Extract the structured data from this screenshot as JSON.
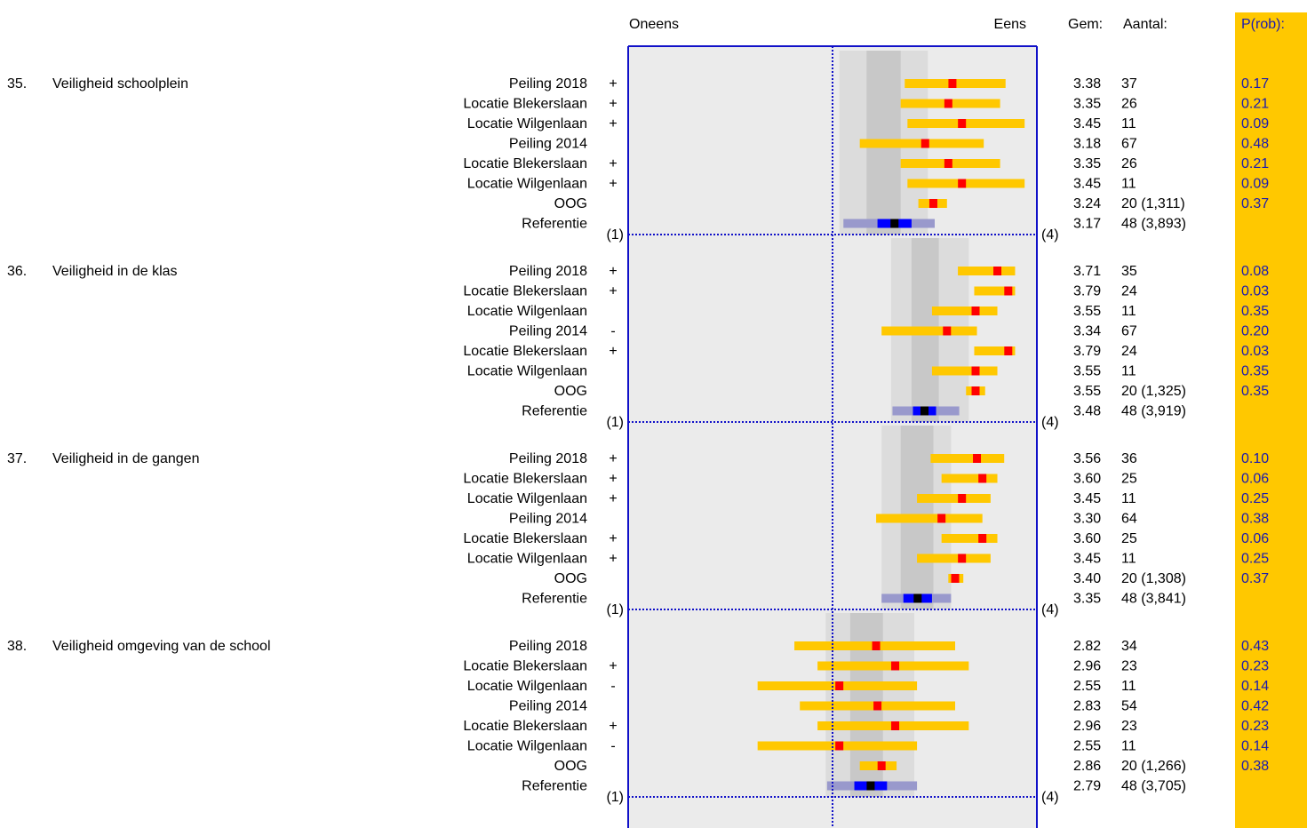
{
  "header": {
    "left_label": "Oneens",
    "right_label": "Eens",
    "mean_label": "Gem:",
    "count_label": "Aantal:",
    "prob_label": "P(rob):"
  },
  "axis": {
    "min": 1,
    "max": 4,
    "min_label": "(1)",
    "max_label": "(4)"
  },
  "colors": {
    "frame": "#1010c8",
    "plot_bg": "#ebebeb",
    "band_outer": "#dcdcdc",
    "band_inner": "#c8c8c8",
    "bar": "#ffc800",
    "mean_marker": "#ff0000",
    "ref_bar": "#9999cc",
    "ref_inner": "#0000ff",
    "ref_marker": "#000000",
    "prob_column": "#ffc800",
    "prob_text": "#1a1ab0"
  },
  "chart_data": {
    "type": "bar",
    "title": "",
    "xlim": [
      1,
      4
    ],
    "groups": [
      {
        "number": "35.",
        "title": "Veiligheid schoolplein",
        "band_outer": [
          2.55,
          3.2
        ],
        "band_inner": [
          2.75,
          3.0
        ],
        "rows": [
          {
            "label": "Peiling 2018",
            "sign": "+",
            "mean": 3.38,
            "low": 3.03,
            "high": 3.77,
            "mean_text": "3.38",
            "count_text": "37",
            "prob": "0.17"
          },
          {
            "label": "Locatie Blekerslaan",
            "sign": "+",
            "mean": 3.35,
            "low": 3.0,
            "high": 3.73,
            "mean_text": "3.35",
            "count_text": "26",
            "prob": "0.21"
          },
          {
            "label": "Locatie Wilgenlaan",
            "sign": "+",
            "mean": 3.45,
            "low": 3.05,
            "high": 3.91,
            "mean_text": "3.45",
            "count_text": "11",
            "prob": "0.09"
          },
          {
            "label": "Peiling 2014",
            "sign": "",
            "mean": 3.18,
            "low": 2.7,
            "high": 3.61,
            "mean_text": "3.18",
            "count_text": "67",
            "prob": "0.48"
          },
          {
            "label": "Locatie Blekerslaan",
            "sign": "+",
            "mean": 3.35,
            "low": 3.0,
            "high": 3.73,
            "mean_text": "3.35",
            "count_text": "26",
            "prob": "0.21"
          },
          {
            "label": "Locatie Wilgenlaan",
            "sign": "+",
            "mean": 3.45,
            "low": 3.05,
            "high": 3.91,
            "mean_text": "3.45",
            "count_text": "11",
            "prob": "0.09"
          },
          {
            "label": "OOG",
            "sign": "",
            "mean": 3.24,
            "low": 3.13,
            "high": 3.34,
            "mean_text": "3.24",
            "count_text": "20 (1,311)",
            "prob": "0.37"
          },
          {
            "label": "Referentie",
            "sign": "",
            "mean": 3.17,
            "low": 2.58,
            "high": 3.25,
            "inner_low": 2.83,
            "inner_high": 3.08,
            "mean_text": "3.17",
            "count_text": "48 (3,893)",
            "prob": "",
            "reference": true
          }
        ]
      },
      {
        "number": "36.",
        "title": "Veiligheid in de klas",
        "band_outer": [
          2.93,
          3.5
        ],
        "band_inner": [
          3.08,
          3.28
        ],
        "rows": [
          {
            "label": "Peiling 2018",
            "sign": "+",
            "mean": 3.71,
            "low": 3.42,
            "high": 3.84,
            "mean_text": "3.71",
            "count_text": "35",
            "prob": "0.08"
          },
          {
            "label": "Locatie Blekerslaan",
            "sign": "+",
            "mean": 3.79,
            "low": 3.54,
            "high": 3.84,
            "mean_text": "3.79",
            "count_text": "24",
            "prob": "0.03"
          },
          {
            "label": "Locatie Wilgenlaan",
            "sign": "",
            "mean": 3.55,
            "low": 3.23,
            "high": 3.71,
            "mean_text": "3.55",
            "count_text": "11",
            "prob": "0.35"
          },
          {
            "label": "Peiling 2014",
            "sign": "-",
            "mean": 3.34,
            "low": 2.86,
            "high": 3.56,
            "mean_text": "3.34",
            "count_text": "67",
            "prob": "0.20"
          },
          {
            "label": "Locatie Blekerslaan",
            "sign": "+",
            "mean": 3.79,
            "low": 3.54,
            "high": 3.84,
            "mean_text": "3.79",
            "count_text": "24",
            "prob": "0.03"
          },
          {
            "label": "Locatie Wilgenlaan",
            "sign": "",
            "mean": 3.55,
            "low": 3.23,
            "high": 3.71,
            "mean_text": "3.55",
            "count_text": "11",
            "prob": "0.35"
          },
          {
            "label": "OOG",
            "sign": "",
            "mean": 3.55,
            "low": 3.48,
            "high": 3.62,
            "mean_text": "3.55",
            "count_text": "20 (1,325)",
            "prob": "0.35"
          },
          {
            "label": "Referentie",
            "sign": "",
            "mean": 3.48,
            "low": 2.94,
            "high": 3.43,
            "inner_low": 3.09,
            "inner_high": 3.26,
            "mean_text": "3.48",
            "count_text": "48 (3,919)",
            "prob": "",
            "reference": true
          }
        ]
      },
      {
        "number": "37.",
        "title": "Veiligheid in de gangen",
        "band_outer": [
          2.86,
          3.37
        ],
        "band_inner": [
          3.0,
          3.24
        ],
        "rows": [
          {
            "label": "Peiling 2018",
            "sign": "+",
            "mean": 3.56,
            "low": 3.22,
            "high": 3.76,
            "mean_text": "3.56",
            "count_text": "36",
            "prob": "0.10"
          },
          {
            "label": "Locatie Blekerslaan",
            "sign": "+",
            "mean": 3.6,
            "low": 3.3,
            "high": 3.71,
            "mean_text": "3.60",
            "count_text": "25",
            "prob": "0.06"
          },
          {
            "label": "Locatie Wilgenlaan",
            "sign": "+",
            "mean": 3.45,
            "low": 3.12,
            "high": 3.66,
            "mean_text": "3.45",
            "count_text": "11",
            "prob": "0.25"
          },
          {
            "label": "Peiling 2014",
            "sign": "",
            "mean": 3.3,
            "low": 2.82,
            "high": 3.6,
            "mean_text": "3.30",
            "count_text": "64",
            "prob": "0.38"
          },
          {
            "label": "Locatie Blekerslaan",
            "sign": "+",
            "mean": 3.6,
            "low": 3.3,
            "high": 3.71,
            "mean_text": "3.60",
            "count_text": "25",
            "prob": "0.06"
          },
          {
            "label": "Locatie Wilgenlaan",
            "sign": "+",
            "mean": 3.45,
            "low": 3.12,
            "high": 3.66,
            "mean_text": "3.45",
            "count_text": "11",
            "prob": "0.25"
          },
          {
            "label": "OOG",
            "sign": "",
            "mean": 3.4,
            "low": 3.35,
            "high": 3.46,
            "mean_text": "3.40",
            "count_text": "20 (1,308)",
            "prob": "0.37"
          },
          {
            "label": "Referentie",
            "sign": "",
            "mean": 3.35,
            "low": 2.86,
            "high": 3.37,
            "inner_low": 3.02,
            "inner_high": 3.23,
            "mean_text": "3.35",
            "count_text": "48 (3,841)",
            "prob": "",
            "reference": true
          }
        ]
      },
      {
        "number": "38.",
        "title": "Veiligheid omgeving van de school",
        "band_outer": [
          2.45,
          3.1
        ],
        "band_inner": [
          2.63,
          2.87
        ],
        "rows": [
          {
            "label": "Peiling 2018",
            "sign": "",
            "mean": 2.82,
            "low": 2.22,
            "high": 3.4,
            "mean_text": "2.82",
            "count_text": "34",
            "prob": "0.43"
          },
          {
            "label": "Locatie Blekerslaan",
            "sign": "+",
            "mean": 2.96,
            "low": 2.39,
            "high": 3.5,
            "mean_text": "2.96",
            "count_text": "23",
            "prob": "0.23"
          },
          {
            "label": "Locatie Wilgenlaan",
            "sign": "-",
            "mean": 2.55,
            "low": 1.95,
            "high": 3.12,
            "mean_text": "2.55",
            "count_text": "11",
            "prob": "0.14"
          },
          {
            "label": "Peiling 2014",
            "sign": "",
            "mean": 2.83,
            "low": 2.26,
            "high": 3.4,
            "mean_text": "2.83",
            "count_text": "54",
            "prob": "0.42"
          },
          {
            "label": "Locatie Blekerslaan",
            "sign": "+",
            "mean": 2.96,
            "low": 2.39,
            "high": 3.5,
            "mean_text": "2.96",
            "count_text": "23",
            "prob": "0.23"
          },
          {
            "label": "Locatie Wilgenlaan",
            "sign": "-",
            "mean": 2.55,
            "low": 1.95,
            "high": 3.12,
            "mean_text": "2.55",
            "count_text": "11",
            "prob": "0.14"
          },
          {
            "label": "OOG",
            "sign": "",
            "mean": 2.86,
            "low": 2.7,
            "high": 2.97,
            "mean_text": "2.86",
            "count_text": "20 (1,266)",
            "prob": "0.38"
          },
          {
            "label": "Referentie",
            "sign": "",
            "mean": 2.79,
            "low": 2.46,
            "high": 3.12,
            "inner_low": 2.66,
            "inner_high": 2.9,
            "mean_text": "2.79",
            "count_text": "48 (3,705)",
            "prob": "",
            "reference": true
          }
        ]
      }
    ]
  }
}
